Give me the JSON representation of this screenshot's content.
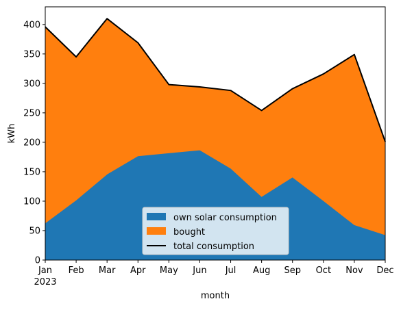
{
  "chart_data": {
    "type": "area",
    "x": [
      "Jan",
      "Feb",
      "Mar",
      "Apr",
      "May",
      "Jun",
      "Jul",
      "Aug",
      "Sep",
      "Oct",
      "Nov",
      "Dec"
    ],
    "x_year_label": "2023",
    "xlabel": "month",
    "ylabel": "kWh",
    "ylim": [
      0,
      430
    ],
    "yticks": [
      0,
      50,
      100,
      150,
      200,
      250,
      300,
      350,
      400
    ],
    "series": [
      {
        "name": "own solar consumption",
        "color": "#1f77b4",
        "values": [
          63,
          102,
          146,
          177,
          182,
          187,
          156,
          108,
          141,
          101,
          60,
          43
        ]
      },
      {
        "name": "bought",
        "color": "#ff7f0e",
        "values": [
          333,
          243,
          264,
          192,
          116,
          107,
          132,
          146,
          150,
          215,
          289,
          158
        ]
      }
    ],
    "line_series": {
      "name": "total consumption",
      "color": "#000000",
      "values": [
        396,
        345,
        410,
        369,
        298,
        294,
        288,
        254,
        291,
        316,
        349,
        201
      ]
    },
    "legend_position": "lower-center",
    "grid": false
  }
}
